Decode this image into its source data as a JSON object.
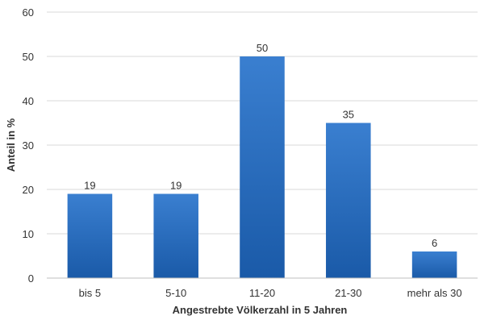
{
  "chart_data": {
    "type": "bar",
    "categories": [
      "bis 5",
      "5-10",
      "11-20",
      "21-30",
      "mehr als 30"
    ],
    "values": [
      19,
      19,
      50,
      35,
      6
    ],
    "data_labels": [
      "19",
      "19",
      "50",
      "35",
      "6"
    ],
    "title": "",
    "xlabel": "Angestrebte Völkerzahl in 5 Jahren",
    "ylabel": "Anteil in %",
    "ylim": [
      0,
      60
    ],
    "yticks": [
      0,
      10,
      20,
      30,
      40,
      50,
      60
    ],
    "grid": true,
    "legend": "none",
    "colors": {
      "bar_top": "#3a7fd0",
      "bar_bottom": "#1a5aa8",
      "grid": "#d9d9d9",
      "axis": "#bfbfbf"
    }
  }
}
